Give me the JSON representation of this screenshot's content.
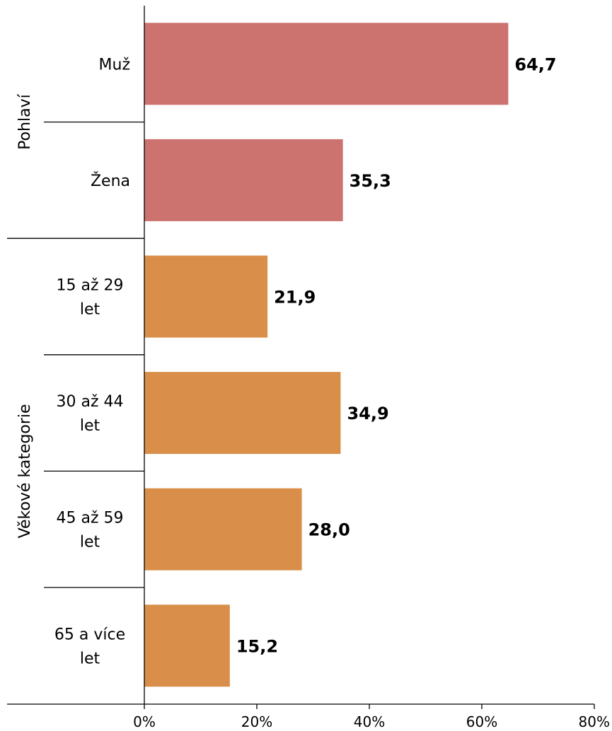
{
  "chart_data": {
    "type": "bar",
    "orientation": "horizontal",
    "groups": [
      {
        "label": "Pohlaví",
        "color": "#cc7370",
        "categories": [
          {
            "label_lines": [
              "Muž"
            ],
            "value": 64.7,
            "value_label": "64,7"
          },
          {
            "label_lines": [
              "Žena"
            ],
            "value": 35.3,
            "value_label": "35,3"
          }
        ]
      },
      {
        "label": "Věkové kategorie",
        "color": "#d98f4a",
        "categories": [
          {
            "label_lines": [
              "15 až 29",
              "let"
            ],
            "value": 21.9,
            "value_label": "21,9"
          },
          {
            "label_lines": [
              "30 až 44",
              "let"
            ],
            "value": 34.9,
            "value_label": "34,9"
          },
          {
            "label_lines": [
              "45 až 59",
              "let"
            ],
            "value": 28.0,
            "value_label": "28,0"
          },
          {
            "label_lines": [
              "65 a více",
              "let"
            ],
            "value": 15.2,
            "value_label": "15,2"
          }
        ]
      }
    ],
    "xlim": [
      0,
      80
    ],
    "xticks": [
      {
        "value": 0,
        "label": "0%"
      },
      {
        "value": 20,
        "label": "20%"
      },
      {
        "value": 40,
        "label": "40%"
      },
      {
        "value": 60,
        "label": "60%"
      },
      {
        "value": 80,
        "label": "80%"
      }
    ],
    "grid": false,
    "legend": "none"
  }
}
